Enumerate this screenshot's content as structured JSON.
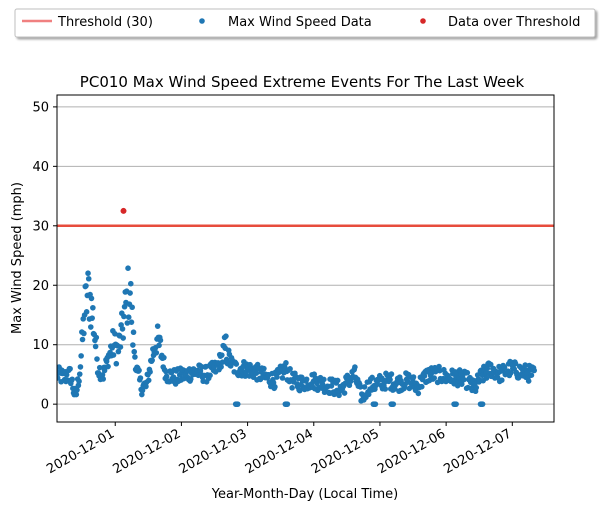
{
  "chart_data": {
    "type": "scatter",
    "title": "PC010 Max Wind Speed Extreme Events For The Last Week",
    "xlabel": "Year-Month-Day (Local Time)",
    "ylabel": "Max Wind Speed (mph)",
    "x_tick_labels": [
      "2020-12-01",
      "2020-12-02",
      "2020-12-03",
      "2020-12-04",
      "2020-12-05",
      "2020-12-06",
      "2020-12-07"
    ],
    "y_tick_labels": [
      "0",
      "10",
      "20",
      "30",
      "40",
      "50"
    ],
    "y_ticks": [
      0,
      10,
      20,
      30,
      40,
      50
    ],
    "ylim": [
      -3,
      52
    ],
    "grid": "horizontal",
    "legend_position": "top-center",
    "legend": [
      {
        "label": "Threshold (30)",
        "kind": "line",
        "color": "#f08080"
      },
      {
        "label": "Max Wind Speed Data",
        "kind": "dot",
        "color": "#1f77b4"
      },
      {
        "label": "Data over Threshold",
        "kind": "dot",
        "color": "#d62728"
      }
    ],
    "threshold": 30,
    "threshold_color": "#e74c3c",
    "data_color": "#1f77b4",
    "over_color": "#d62728",
    "over_threshold_points": [
      {
        "x": "2020-12-01 03:00",
        "y": 32.5
      }
    ],
    "wind_profile_days": [
      [
        0.0,
        5
      ],
      [
        0.1,
        4.5
      ],
      [
        0.2,
        5
      ],
      [
        0.28,
        1
      ],
      [
        0.35,
        6
      ],
      [
        0.42,
        16
      ],
      [
        0.48,
        19
      ],
      [
        0.55,
        14
      ],
      [
        0.62,
        6
      ],
      [
        0.7,
        5
      ],
      [
        0.78,
        8
      ],
      [
        0.85,
        10
      ],
      [
        0.92,
        9
      ],
      [
        0.98,
        12
      ],
      [
        1.05,
        17
      ],
      [
        1.1,
        20
      ],
      [
        1.15,
        11
      ],
      [
        1.2,
        6
      ],
      [
        1.27,
        3
      ],
      [
        1.35,
        3
      ],
      [
        1.42,
        7
      ],
      [
        1.5,
        11
      ],
      [
        1.57,
        9
      ],
      [
        1.65,
        5
      ],
      [
        1.8,
        4.5
      ],
      [
        1.95,
        5
      ],
      [
        2.1,
        5.5
      ],
      [
        2.25,
        5
      ],
      [
        2.4,
        6
      ],
      [
        2.5,
        8
      ],
      [
        2.55,
        9.5
      ],
      [
        2.62,
        7
      ],
      [
        2.7,
        6
      ],
      [
        2.85,
        6
      ],
      [
        3.0,
        5.5
      ],
      [
        3.15,
        4.5
      ],
      [
        3.3,
        4
      ],
      [
        3.45,
        6
      ],
      [
        3.55,
        4
      ],
      [
        3.7,
        3.5
      ],
      [
        3.85,
        4
      ],
      [
        4.0,
        3.5
      ],
      [
        4.15,
        3
      ],
      [
        4.3,
        2.5
      ],
      [
        4.4,
        4
      ],
      [
        4.5,
        5
      ],
      [
        4.6,
        1
      ],
      [
        4.7,
        3
      ],
      [
        4.85,
        3.5
      ],
      [
        5.0,
        4
      ],
      [
        5.15,
        3.5
      ],
      [
        5.3,
        4
      ],
      [
        5.45,
        3
      ],
      [
        5.6,
        5
      ],
      [
        5.75,
        5
      ],
      [
        5.9,
        4.5
      ],
      [
        6.05,
        4.5
      ],
      [
        6.2,
        4
      ],
      [
        6.3,
        2.5
      ],
      [
        6.4,
        4.5
      ],
      [
        6.55,
        6
      ],
      [
        6.7,
        5
      ],
      [
        6.85,
        6
      ],
      [
        7.0,
        5.5
      ],
      [
        7.22,
        5
      ]
    ],
    "zero_events_days": [
      2.7,
      3.45,
      4.78,
      5.05,
      6.0,
      6.4
    ],
    "sample_interval_days": 0.01042
  }
}
